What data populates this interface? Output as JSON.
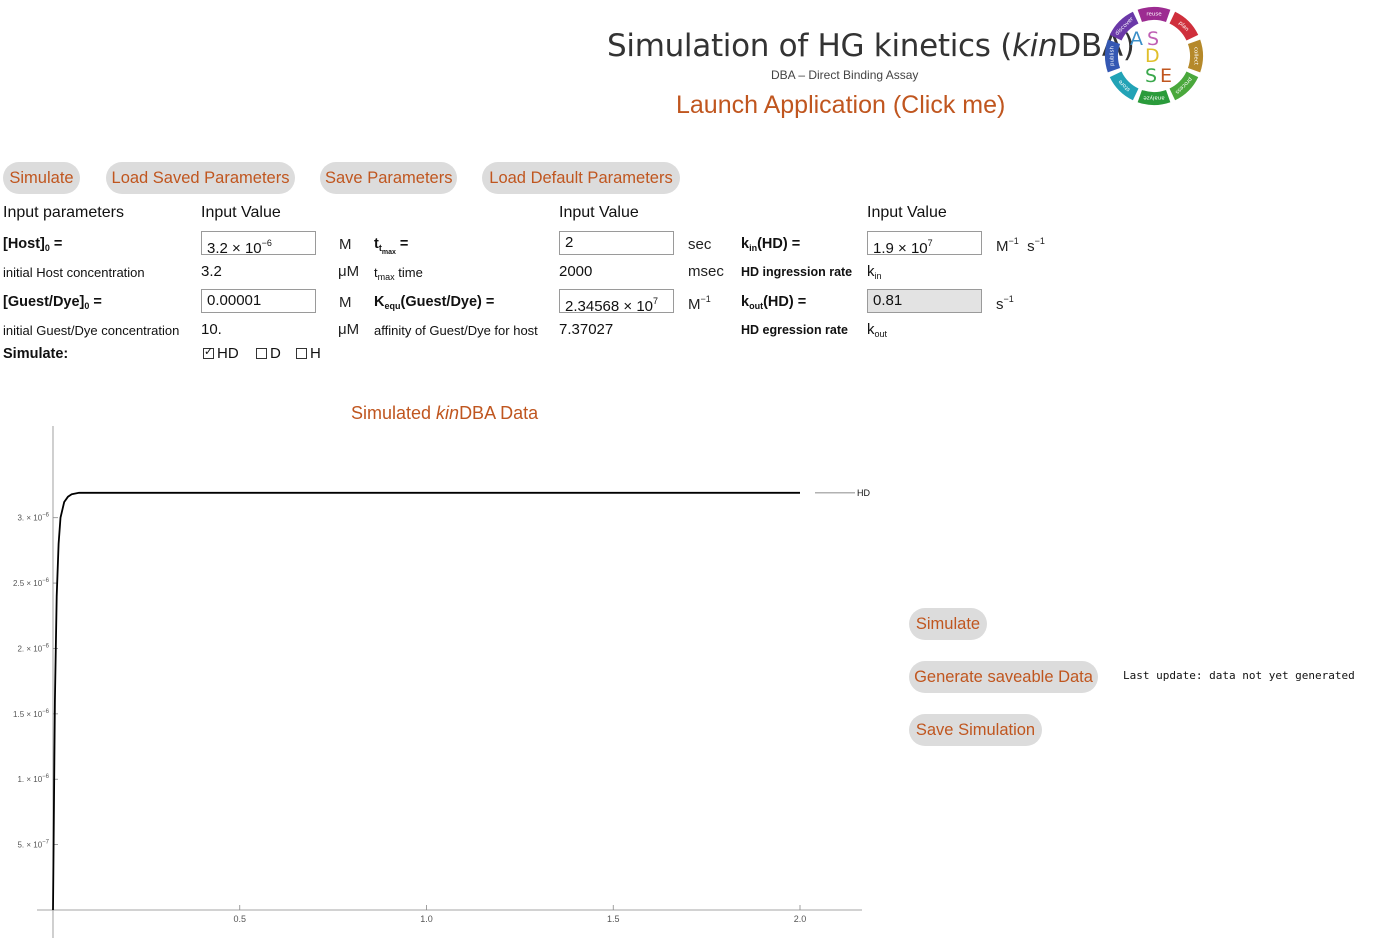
{
  "header": {
    "title_pre": "Simulation of HG kinetics (",
    "title_it": "kin",
    "title_post": "DBA)",
    "subtitle": "DBA – Direct Binding Assay",
    "launch": "Launch Application (Click me)"
  },
  "logo": {
    "letters": {
      "a": "A",
      "s": "S",
      "d": "D",
      "s2": "S",
      "e": "E"
    },
    "segments": [
      "reuse",
      "plan",
      "collect",
      "process",
      "analyze",
      "store",
      "publish",
      "discover"
    ],
    "colors": [
      "#9c2b91",
      "#cf2f3c",
      "#b5892a",
      "#4aa83c",
      "#2a9b3b",
      "#22a3b6",
      "#3458b3",
      "#6a38a8"
    ]
  },
  "toolbar": {
    "simulate": "Simulate",
    "load_saved": "Load Saved Parameters",
    "save": "Save Parameters",
    "load_default": "Load Default Parameters"
  },
  "params": {
    "col_input_params": "Input parameters",
    "col_input_value": "Input Value",
    "host_label": "[Host]",
    "host_sub": "0",
    "host_value": "3.2 × 10",
    "host_exp": "−6",
    "host_unit": "M",
    "host_desc": "initial Host concentration",
    "host_derived": "3.2",
    "host_derived_unit": "μM",
    "guest_label": "[Guest/Dye]",
    "guest_sub": "0",
    "guest_value": "0.00001",
    "guest_unit": "M",
    "guest_desc": "initial Guest/Dye concentration",
    "guest_derived": "10.",
    "guest_derived_unit": "μM",
    "simulate_label": "Simulate:",
    "checks": [
      {
        "label": "HD",
        "checked": true
      },
      {
        "label": "D",
        "checked": false
      },
      {
        "label": "H",
        "checked": false
      }
    ],
    "tmax_label": "t",
    "tmax_sub": "t",
    "tmax_subsub": "max",
    "tmax_value": "2",
    "tmax_unit": "sec",
    "tmax_desc_t": "t",
    "tmax_desc_sub": "max",
    "tmax_desc": " time",
    "tmax_derived": "2000",
    "tmax_derived_unit": "msec",
    "kequ_label": "K",
    "kequ_sub": "equ",
    "kequ_post": "(Guest/Dye) =",
    "kequ_value": "2.34568 × 10",
    "kequ_exp": "7",
    "kequ_unit": "M",
    "kequ_unit_exp": "−1",
    "kequ_desc": "affinity of Guest/Dye for host",
    "kequ_derived": "7.37027",
    "kin_label": "k",
    "kin_sub": "in",
    "kin_post": "(HD) =",
    "kin_value": "1.9 × 10",
    "kin_exp": "7",
    "kin_unit": "M",
    "kin_unit_exp": "−1",
    "kin_unit2": "s",
    "kin_unit2_exp": "−1",
    "kin_desc": "HD ingression rate",
    "kin_sym": "k",
    "kin_sym_sub": "in",
    "kout_label": "k",
    "kout_sub": "out",
    "kout_post": "(HD) =",
    "kout_value": "0.81",
    "kout_unit": "s",
    "kout_unit_exp": "−1",
    "kout_desc": "HD egression rate",
    "kout_sym": "k",
    "kout_sym_sub": "out",
    "equals": " ="
  },
  "plot": {
    "title_pre": "Simulated ",
    "title_it": "kin",
    "title_post": "DBA Data"
  },
  "chart_data": {
    "type": "line",
    "title": "Simulated kinDBA Data",
    "xlim": [
      0,
      2.0
    ],
    "ylim": [
      0,
      3.2e-06
    ],
    "x_ticks": [
      0.5,
      1.0,
      1.5,
      2.0
    ],
    "x_tick_labels": [
      "0.5",
      "1.0",
      "1.5",
      "2.0"
    ],
    "y_ticks": [
      5e-07,
      1e-06,
      1.5e-06,
      2e-06,
      2.5e-06,
      3e-06
    ],
    "y_tick_labels": [
      {
        "m": "5. × 10",
        "e": "−7"
      },
      {
        "m": "1. × 10",
        "e": "−6"
      },
      {
        "m": "1.5 × 10",
        "e": "−6"
      },
      {
        "m": "2. × 10",
        "e": "−6"
      },
      {
        "m": "2.5 × 10",
        "e": "−6"
      },
      {
        "m": "3. × 10",
        "e": "−6"
      }
    ],
    "series": [
      {
        "name": "HD",
        "color": "#000000",
        "x": [
          0,
          0.005,
          0.01,
          0.015,
          0.02,
          0.03,
          0.04,
          0.05,
          0.07,
          0.1,
          0.2,
          0.5,
          1.0,
          1.5,
          2.0
        ],
        "y": [
          0,
          1.6e-06,
          2.4e-06,
          2.8e-06,
          3e-06,
          3.12e-06,
          3.16e-06,
          3.18e-06,
          3.19e-06,
          3.19e-06,
          3.19e-06,
          3.19e-06,
          3.19e-06,
          3.19e-06,
          3.19e-06
        ]
      }
    ],
    "legend": "right"
  },
  "right_panel": {
    "simulate": "Simulate",
    "generate": "Generate saveable Data",
    "save_sim": "Save Simulation",
    "status": "Last update: data not yet generated"
  }
}
